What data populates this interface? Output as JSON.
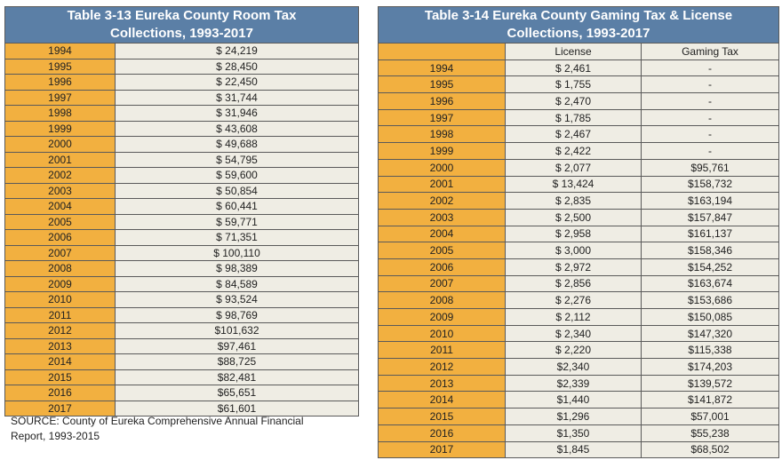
{
  "room_tax": {
    "title_line1": "Table 3-13 Eureka County Room Tax",
    "title_line2": "Collections, 1993-2017",
    "rows": [
      {
        "year": "1994",
        "value": "$ 24,219"
      },
      {
        "year": "1995",
        "value": "$ 28,450"
      },
      {
        "year": "1996",
        "value": "$ 22,450"
      },
      {
        "year": "1997",
        "value": "$ 31,744"
      },
      {
        "year": "1998",
        "value": "$ 31,946"
      },
      {
        "year": "1999",
        "value": "$ 43,608"
      },
      {
        "year": "2000",
        "value": "$ 49,688"
      },
      {
        "year": "2001",
        "value": "$ 54,795"
      },
      {
        "year": "2002",
        "value": "$ 59,600"
      },
      {
        "year": "2003",
        "value": "$ 50,854"
      },
      {
        "year": "2004",
        "value": "$ 60,441"
      },
      {
        "year": "2005",
        "value": "$ 59,771"
      },
      {
        "year": "2006",
        "value": "$ 71,351"
      },
      {
        "year": "2007",
        "value": "$ 100,110"
      },
      {
        "year": "2008",
        "value": "$ 98,389"
      },
      {
        "year": "2009",
        "value": "$ 84,589"
      },
      {
        "year": "2010",
        "value": "$ 93,524"
      },
      {
        "year": "2011",
        "value": "$ 98,769"
      },
      {
        "year": "2012",
        "value": "$101,632"
      },
      {
        "year": "2013",
        "value": "$97,461"
      },
      {
        "year": "2014",
        "value": "$88,725"
      },
      {
        "year": "2015",
        "value": "$82,481"
      },
      {
        "year": "2016",
        "value": "$65,651"
      },
      {
        "year": "2017",
        "value": "$61,601"
      }
    ],
    "source": "SOURCE: County of Eureka Comprehensive Annual Financial Report, 1993-2015"
  },
  "gaming_tax": {
    "title_line1": "Table 3-14 Eureka County Gaming Tax & License",
    "title_line2": "Collections, 1993-2017",
    "col_license": "License",
    "col_gaming": "Gaming Tax",
    "rows": [
      {
        "year": "1994",
        "license": "$ 2,461",
        "gaming": "-"
      },
      {
        "year": "1995",
        "license": "$ 1,755",
        "gaming": "-"
      },
      {
        "year": "1996",
        "license": "$ 2,470",
        "gaming": "-"
      },
      {
        "year": "1997",
        "license": "$ 1,785",
        "gaming": "-"
      },
      {
        "year": "1998",
        "license": "$ 2,467",
        "gaming": "-"
      },
      {
        "year": "1999",
        "license": "$ 2,422",
        "gaming": "-"
      },
      {
        "year": "2000",
        "license": "$ 2,077",
        "gaming": "$95,761"
      },
      {
        "year": "2001",
        "license": "$ 13,424",
        "gaming": "$158,732"
      },
      {
        "year": "2002",
        "license": "$ 2,835",
        "gaming": "$163,194"
      },
      {
        "year": "2003",
        "license": "$ 2,500",
        "gaming": "$157,847"
      },
      {
        "year": "2004",
        "license": "$ 2,958",
        "gaming": "$161,137"
      },
      {
        "year": "2005",
        "license": "$ 3,000",
        "gaming": "$158,346"
      },
      {
        "year": "2006",
        "license": "$ 2,972",
        "gaming": "$154,252"
      },
      {
        "year": "2007",
        "license": "$ 2,856",
        "gaming": "$163,674"
      },
      {
        "year": "2008",
        "license": "$ 2,276",
        "gaming": "$153,686"
      },
      {
        "year": "2009",
        "license": "$ 2,112",
        "gaming": "$150,085"
      },
      {
        "year": "2010",
        "license": "$ 2,340",
        "gaming": "$147,320"
      },
      {
        "year": "2011",
        "license": "$ 2,220",
        "gaming": "$115,338"
      },
      {
        "year": "2012",
        "license": "$2,340",
        "gaming": "$174,203"
      },
      {
        "year": "2013",
        "license": "$2,339",
        "gaming": "$139,572"
      },
      {
        "year": "2014",
        "license": "$1,440",
        "gaming": "$141,872"
      },
      {
        "year": "2015",
        "license": "$1,296",
        "gaming": "$57,001"
      },
      {
        "year": "2016",
        "license": "$1,350",
        "gaming": "$55,238"
      },
      {
        "year": "2017",
        "license": "$1,845",
        "gaming": "$68,502"
      }
    ]
  }
}
